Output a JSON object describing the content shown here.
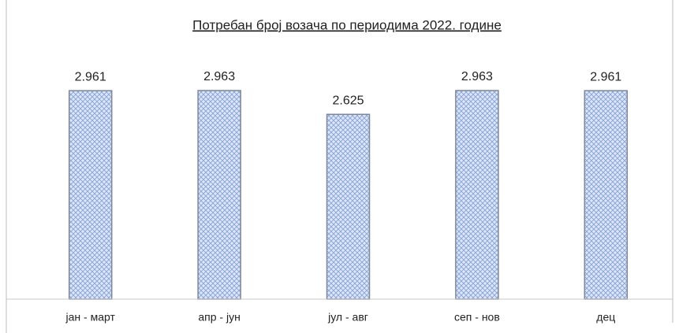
{
  "chart_data": {
    "type": "bar",
    "title": "Потребан број возача по периодима 2022. године",
    "categories": [
      "јан - март",
      "апр - јун",
      "јул - авг",
      "сеп - нов",
      "дец"
    ],
    "values": [
      2961,
      2963,
      2625,
      2963,
      2961
    ],
    "value_labels": [
      "2.961",
      "2.963",
      "2.625",
      "2.963",
      "2.961"
    ],
    "color": "#c9d6f0",
    "ylim": [
      0,
      3500
    ]
  }
}
